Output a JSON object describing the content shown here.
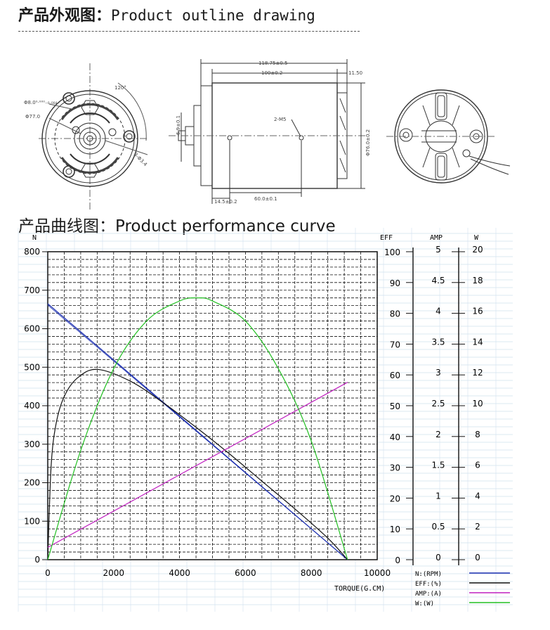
{
  "headings": {
    "outline": {
      "cn": "产品外观图：",
      "en": "Product outline drawing"
    },
    "curve": {
      "cn": "产品曲线图：",
      "en": "Product performance curve"
    }
  },
  "drawing": {
    "front_labels": [
      "120°",
      "Φ8.0⁰·⁰⁰⁰₋₀.₀₀₄",
      "Φ77.0",
      "3-Φ3.4"
    ],
    "side_labels": {
      "overall": "118.75±0.5",
      "body": "100±0.2",
      "end": "11.50",
      "shaft_dia": "6.9±0.1",
      "holes": "2-M5",
      "diameter": "Φ76.0±0.2",
      "offset": "14.5±0.2",
      "spacing": "60.0±0.1"
    }
  },
  "chart_data": {
    "type": "line",
    "x_label": "TORQUE(G.CM)",
    "x_ticks": [
      0,
      2000,
      4000,
      6000,
      8000,
      10000
    ],
    "xlim": [
      0,
      10000
    ],
    "axes": {
      "N": {
        "label": "N",
        "ticks": [
          0,
          100,
          200,
          300,
          400,
          500,
          600,
          700,
          800
        ],
        "range": [
          0,
          800
        ]
      },
      "EFF": {
        "label": "EFF",
        "ticks": [
          0,
          10,
          20,
          30,
          40,
          50,
          60,
          70,
          80,
          90,
          100
        ],
        "range": [
          0,
          100
        ]
      },
      "AMP": {
        "label": "AMP",
        "ticks": [
          "0",
          "0.5",
          "1",
          "1.5",
          "2",
          "2.5",
          "3",
          "3.5",
          "4",
          "4.5",
          "5"
        ],
        "range": [
          0,
          5
        ]
      },
      "W": {
        "label": "W",
        "ticks": [
          0,
          2,
          4,
          6,
          8,
          10,
          12,
          14,
          16,
          18,
          20
        ],
        "range": [
          0,
          20
        ]
      }
    },
    "grid": true,
    "legend_position": "bottom-right",
    "series": [
      {
        "name": "N:(RPM)",
        "axis": "N",
        "color": "#1c2fb0",
        "x": [
          0,
          9100
        ],
        "y": [
          665,
          0
        ]
      },
      {
        "name": "EFF:(%)",
        "axis": "EFF",
        "color": "#111111",
        "x": [
          0,
          100,
          250,
          500,
          900,
          1500,
          2500,
          3500,
          4500,
          5500,
          6500,
          7500,
          8500,
          9100
        ],
        "y": [
          0,
          30,
          44,
          53,
          59,
          61.8,
          58,
          51,
          43,
          34.5,
          25.5,
          16.5,
          7,
          0
        ]
      },
      {
        "name": "AMP:(A)",
        "axis": "AMP",
        "color": "#c020c0",
        "x": [
          0,
          9100
        ],
        "y": [
          0.2,
          2.88
        ]
      },
      {
        "name": "W:(W)",
        "axis": "W",
        "color": "#22c022",
        "x": [
          0,
          1000,
          2000,
          3000,
          4000,
          4550,
          5000,
          6000,
          7000,
          8000,
          9100
        ],
        "y": [
          0,
          7.1,
          12.4,
          15.5,
          16.8,
          17.0,
          16.8,
          15.5,
          12.4,
          7.7,
          0
        ]
      }
    ]
  }
}
